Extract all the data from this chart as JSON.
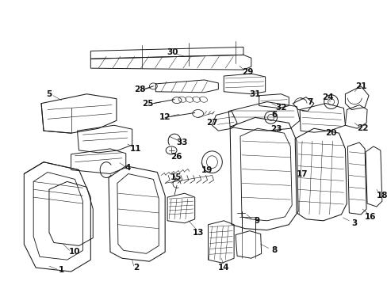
{
  "background_color": "#ffffff",
  "fig_width": 4.89,
  "fig_height": 3.6,
  "dpi": 100,
  "line_color": "#1a1a1a",
  "line_width": 0.7
}
